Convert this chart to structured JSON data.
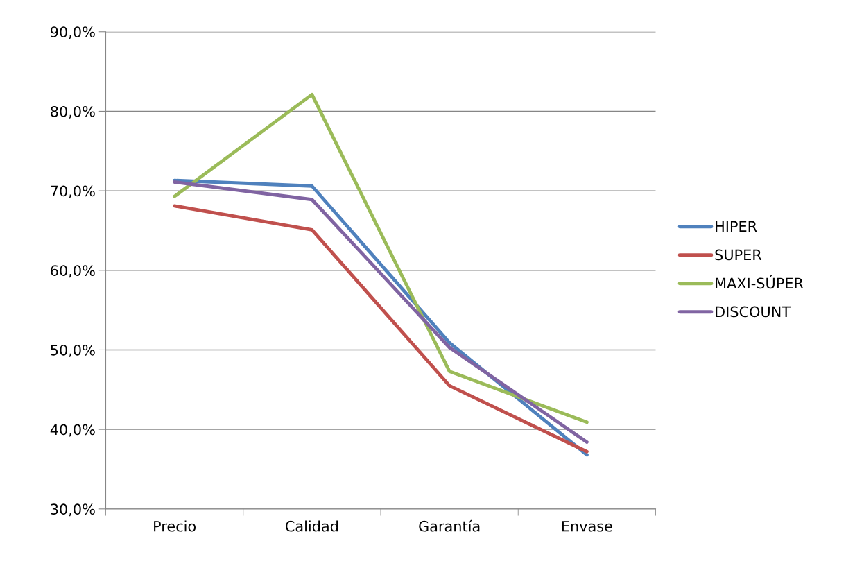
{
  "chart_data": {
    "type": "line",
    "categories": [
      "Precio",
      "Calidad",
      "Garantía",
      "Envase"
    ],
    "series": [
      {
        "name": "HIPER",
        "color": "#4f81bd",
        "values": [
          71.3,
          70.6,
          50.9,
          36.8
        ]
      },
      {
        "name": "SUPER",
        "color": "#c0504d",
        "values": [
          68.1,
          65.1,
          45.5,
          37.2
        ]
      },
      {
        "name": "MAXI-SÚPER",
        "color": "#9bbb59",
        "values": [
          69.3,
          82.1,
          47.3,
          40.9
        ]
      },
      {
        "name": "DISCOUNT",
        "color": "#8064a2",
        "values": [
          71.1,
          68.9,
          50.3,
          38.4
        ]
      }
    ],
    "ylim": [
      30,
      90
    ],
    "yticks": [
      {
        "value": 30,
        "label": "30,0%"
      },
      {
        "value": 40,
        "label": "40,0%"
      },
      {
        "value": 50,
        "label": "50,0%"
      },
      {
        "value": 60,
        "label": "60,0%"
      },
      {
        "value": 70,
        "label": "70,0%"
      },
      {
        "value": 80,
        "label": "80,0%"
      },
      {
        "value": 90,
        "label": "90,0%"
      }
    ],
    "grid": "y",
    "legend": "right",
    "marker": "none",
    "line_style": "solid"
  }
}
